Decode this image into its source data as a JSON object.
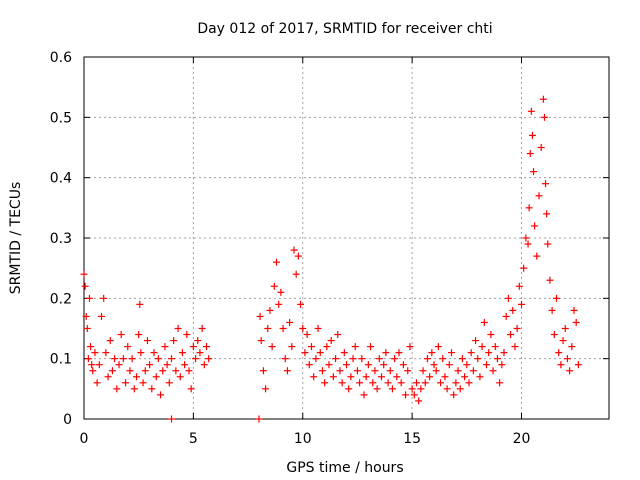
{
  "chart_data": {
    "type": "scatter",
    "title": "Day 012 of 2017, SRMTID for receiver chti",
    "xlabel": "GPS time / hours",
    "ylabel": "SRMTID / TECUs",
    "xlim": [
      0,
      24
    ],
    "ylim": [
      0,
      0.6
    ],
    "xticks": [
      0,
      5,
      10,
      15,
      20
    ],
    "xtick_labels": [
      "0",
      "5",
      "10",
      "15",
      "20"
    ],
    "yticks": [
      0,
      0.1,
      0.2,
      0.3,
      0.4,
      0.5,
      0.6
    ],
    "ytick_labels": [
      "0",
      "0.1",
      "0.2",
      "0.3",
      "0.4",
      "0.5",
      "0.6"
    ],
    "grid": true,
    "marker": "plus",
    "marker_color": "#ff0000",
    "series": [
      {
        "name": "SRMTID",
        "x": [
          0.0,
          0.05,
          0.1,
          0.15,
          0.2,
          0.25,
          0.3,
          0.35,
          0.4,
          0.5,
          0.6,
          0.7,
          0.8,
          0.9,
          1.0,
          1.1,
          1.2,
          1.3,
          1.4,
          1.5,
          1.6,
          1.7,
          1.8,
          1.9,
          2.0,
          2.1,
          2.2,
          2.3,
          2.4,
          2.5,
          2.55,
          2.6,
          2.7,
          2.8,
          2.9,
          3.0,
          3.1,
          3.2,
          3.3,
          3.4,
          3.5,
          3.6,
          3.7,
          3.8,
          3.9,
          4.0,
          4.1,
          4.2,
          4.3,
          4.4,
          4.5,
          4.6,
          4.7,
          4.8,
          4.9,
          5.0,
          5.1,
          5.2,
          5.3,
          5.4,
          5.5,
          5.6,
          5.7,
          4.0,
          8.0,
          8.05,
          8.1,
          8.2,
          8.3,
          8.4,
          8.5,
          8.6,
          8.7,
          8.8,
          8.9,
          9.0,
          9.1,
          9.2,
          9.3,
          9.4,
          9.5,
          9.6,
          9.7,
          9.8,
          9.9,
          10.0,
          10.1,
          10.2,
          10.3,
          10.4,
          10.5,
          10.6,
          10.7,
          10.8,
          10.9,
          11.0,
          11.1,
          11.2,
          11.3,
          11.4,
          11.5,
          11.6,
          11.7,
          11.8,
          11.9,
          12.0,
          12.1,
          12.2,
          12.3,
          12.4,
          12.5,
          12.6,
          12.7,
          12.8,
          12.9,
          13.0,
          13.1,
          13.2,
          13.3,
          13.4,
          13.5,
          13.6,
          13.7,
          13.8,
          13.9,
          14.0,
          14.1,
          14.2,
          14.3,
          14.4,
          14.5,
          14.6,
          14.7,
          14.8,
          14.9,
          15.0,
          15.1,
          15.2,
          15.3,
          15.4,
          15.5,
          15.6,
          15.7,
          15.8,
          15.9,
          16.0,
          16.1,
          16.2,
          16.3,
          16.4,
          16.5,
          16.6,
          16.7,
          16.8,
          16.9,
          17.0,
          17.1,
          17.2,
          17.3,
          17.4,
          17.5,
          17.6,
          17.7,
          17.8,
          17.9,
          18.0,
          18.1,
          18.2,
          18.3,
          18.4,
          18.5,
          18.6,
          18.7,
          18.8,
          18.9,
          19.0,
          19.1,
          19.2,
          19.3,
          19.4,
          19.5,
          19.6,
          19.7,
          19.8,
          19.9,
          20.0,
          20.1,
          20.2,
          20.3,
          20.35,
          20.4,
          20.45,
          20.5,
          20.55,
          20.6,
          20.7,
          20.8,
          20.9,
          21.0,
          21.05,
          21.1,
          21.15,
          21.2,
          21.3,
          21.4,
          21.5,
          21.6,
          21.7,
          21.8,
          21.9,
          22.0,
          22.1,
          22.2,
          22.3,
          22.4,
          22.5,
          22.6
        ],
        "y": [
          0.24,
          0.22,
          0.17,
          0.15,
          0.1,
          0.2,
          0.12,
          0.09,
          0.08,
          0.11,
          0.06,
          0.09,
          0.17,
          0.2,
          0.11,
          0.07,
          0.13,
          0.08,
          0.1,
          0.05,
          0.09,
          0.14,
          0.1,
          0.06,
          0.12,
          0.08,
          0.1,
          0.05,
          0.07,
          0.14,
          0.19,
          0.11,
          0.06,
          0.08,
          0.13,
          0.09,
          0.05,
          0.11,
          0.07,
          0.1,
          0.04,
          0.08,
          0.12,
          0.09,
          0.06,
          0.1,
          0.13,
          0.08,
          0.15,
          0.07,
          0.11,
          0.09,
          0.14,
          0.08,
          0.05,
          0.12,
          0.1,
          0.13,
          0.11,
          0.15,
          0.09,
          0.12,
          0.1,
          0.0,
          0.0,
          0.17,
          0.13,
          0.08,
          0.05,
          0.15,
          0.18,
          0.12,
          0.22,
          0.26,
          0.19,
          0.21,
          0.15,
          0.1,
          0.08,
          0.16,
          0.12,
          0.28,
          0.24,
          0.27,
          0.19,
          0.15,
          0.11,
          0.14,
          0.09,
          0.12,
          0.07,
          0.1,
          0.15,
          0.11,
          0.08,
          0.06,
          0.12,
          0.09,
          0.13,
          0.07,
          0.1,
          0.14,
          0.08,
          0.06,
          0.11,
          0.09,
          0.05,
          0.07,
          0.1,
          0.12,
          0.08,
          0.06,
          0.1,
          0.04,
          0.07,
          0.09,
          0.12,
          0.06,
          0.08,
          0.05,
          0.1,
          0.07,
          0.09,
          0.11,
          0.06,
          0.08,
          0.05,
          0.1,
          0.07,
          0.11,
          0.06,
          0.09,
          0.04,
          0.08,
          0.12,
          0.05,
          0.04,
          0.06,
          0.03,
          0.05,
          0.08,
          0.06,
          0.1,
          0.07,
          0.11,
          0.09,
          0.08,
          0.12,
          0.06,
          0.1,
          0.07,
          0.05,
          0.09,
          0.11,
          0.04,
          0.06,
          0.08,
          0.05,
          0.1,
          0.07,
          0.09,
          0.06,
          0.11,
          0.08,
          0.13,
          0.1,
          0.07,
          0.12,
          0.16,
          0.09,
          0.11,
          0.14,
          0.08,
          0.12,
          0.1,
          0.06,
          0.09,
          0.11,
          0.17,
          0.2,
          0.14,
          0.18,
          0.12,
          0.15,
          0.22,
          0.19,
          0.25,
          0.3,
          0.29,
          0.35,
          0.44,
          0.51,
          0.47,
          0.41,
          0.32,
          0.27,
          0.37,
          0.45,
          0.53,
          0.5,
          0.39,
          0.34,
          0.29,
          0.23,
          0.18,
          0.14,
          0.2,
          0.11,
          0.09,
          0.13,
          0.15,
          0.1,
          0.08,
          0.12,
          0.18,
          0.16,
          0.09
        ]
      }
    ]
  }
}
